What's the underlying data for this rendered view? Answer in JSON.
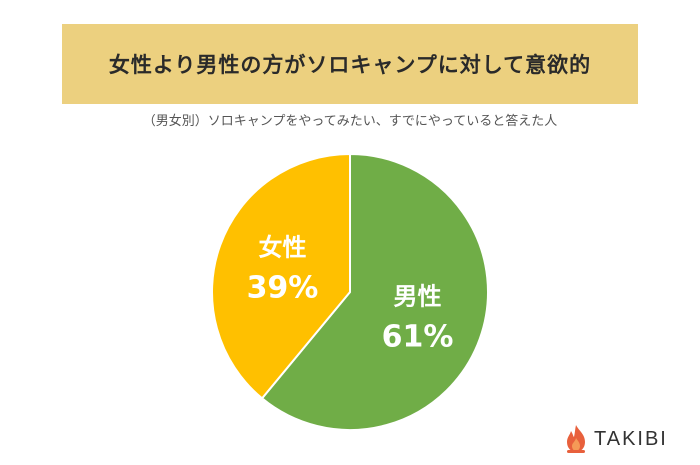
{
  "title": "女性より男性の方がソロキャンプに対して意欲的",
  "subtitle": "（男女別）ソロキャンプをやってみたい、すでにやっていると答えた人",
  "brand": "TAKIBI",
  "colors": {
    "banner": "#ecd07f",
    "male": "#70ad47",
    "female": "#ffc000",
    "flame": "#e8603c"
  },
  "chart_data": {
    "type": "pie",
    "slices": [
      {
        "label": "男性",
        "value": 61,
        "value_label": "61%",
        "color": "#70ad47"
      },
      {
        "label": "女性",
        "value": 39,
        "value_label": "39%",
        "color": "#ffc000"
      }
    ],
    "start": "12 o'clock, clockwise"
  }
}
